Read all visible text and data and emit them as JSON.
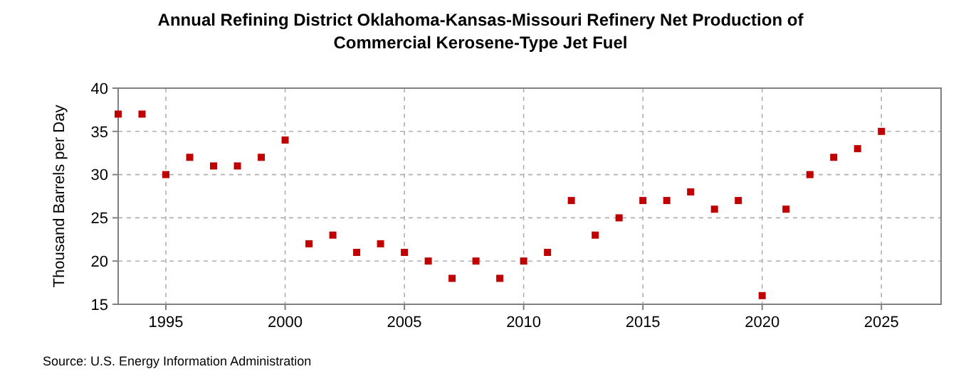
{
  "chart_data": {
    "type": "scatter",
    "title": "Annual Refining District Oklahoma-Kansas-Missouri Refinery Net Production of Commercial Kerosene-Type Jet Fuel",
    "ylabel": "Thousand Barrels per Day",
    "annotations": [
      "Source: U.S. Energy Information Administration"
    ],
    "x": [
      1993,
      1994,
      1995,
      1996,
      1997,
      1998,
      1999,
      2000,
      2001,
      2002,
      2003,
      2004,
      2005,
      2006,
      2007,
      2008,
      2009,
      2010,
      2011,
      2012,
      2013,
      2014,
      2015,
      2016,
      2017,
      2018,
      2019,
      2020,
      2021,
      2022,
      2023,
      2024,
      2025
    ],
    "series": [
      {
        "color": "#c00000",
        "values": [
          37,
          37,
          30,
          32,
          31,
          31,
          32,
          34,
          22,
          23,
          21,
          22,
          21,
          20,
          18,
          20,
          18,
          20,
          21,
          27,
          23,
          25,
          27,
          27,
          28,
          26,
          27,
          16,
          26,
          30,
          32,
          33,
          35
        ]
      }
    ],
    "xlim": [
      1993,
      2027.5
    ],
    "xticks": [
      1995,
      2000,
      2005,
      2010,
      2015,
      2020,
      2025
    ],
    "ylim": [
      15,
      40
    ],
    "yticks": [
      15,
      20,
      25,
      30,
      35,
      40
    ],
    "grid": true,
    "marker": "square"
  }
}
